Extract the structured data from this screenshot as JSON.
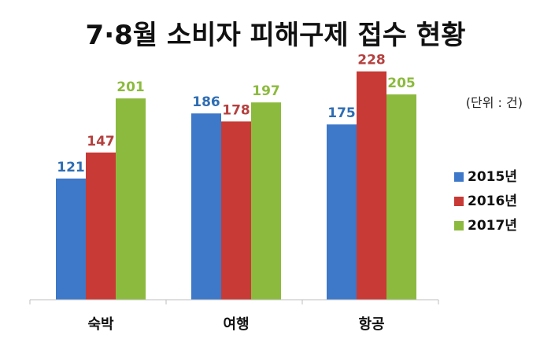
{
  "chart_data": {
    "type": "bar",
    "title": "7·8월 소비자 피해구제 접수 현황",
    "unit_note": "(단위 :  건)",
    "categories": [
      "숙박",
      "여행",
      "항공"
    ],
    "series": [
      {
        "name": "2015년",
        "color": "#3d78c9",
        "label_color": "#2e6db3",
        "values": [
          121,
          186,
          175
        ]
      },
      {
        "name": "2016년",
        "color": "#c83a36",
        "label_color": "#b4413f",
        "values": [
          147,
          178,
          228
        ]
      },
      {
        "name": "2017년",
        "color": "#8cba3e",
        "label_color": "#8cba3e",
        "values": [
          201,
          197,
          205
        ]
      }
    ],
    "ylim": [
      0,
      260
    ],
    "legend_position": "right",
    "grid": false,
    "xlabel": "",
    "ylabel": ""
  }
}
